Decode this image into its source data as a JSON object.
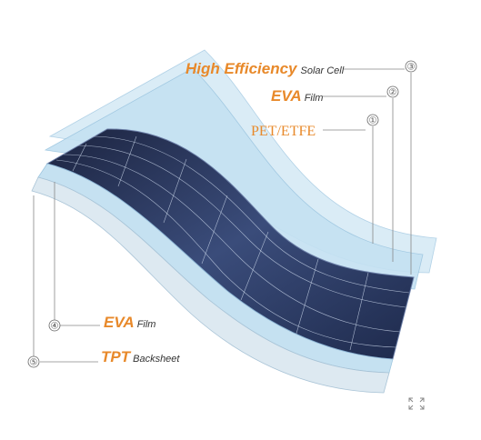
{
  "labels": [
    {
      "number": "③",
      "emphasis": "High Efficiency",
      "text": "Solar Cell"
    },
    {
      "number": "②",
      "emphasis": "EVA",
      "text": "Film"
    },
    {
      "number": "①",
      "emphasis": "PET/ETFE"
    },
    {
      "number": "④",
      "emphasis": "EVA",
      "text": "Film"
    },
    {
      "number": "⑤",
      "emphasis": "TPT",
      "text": "Backsheet"
    }
  ]
}
